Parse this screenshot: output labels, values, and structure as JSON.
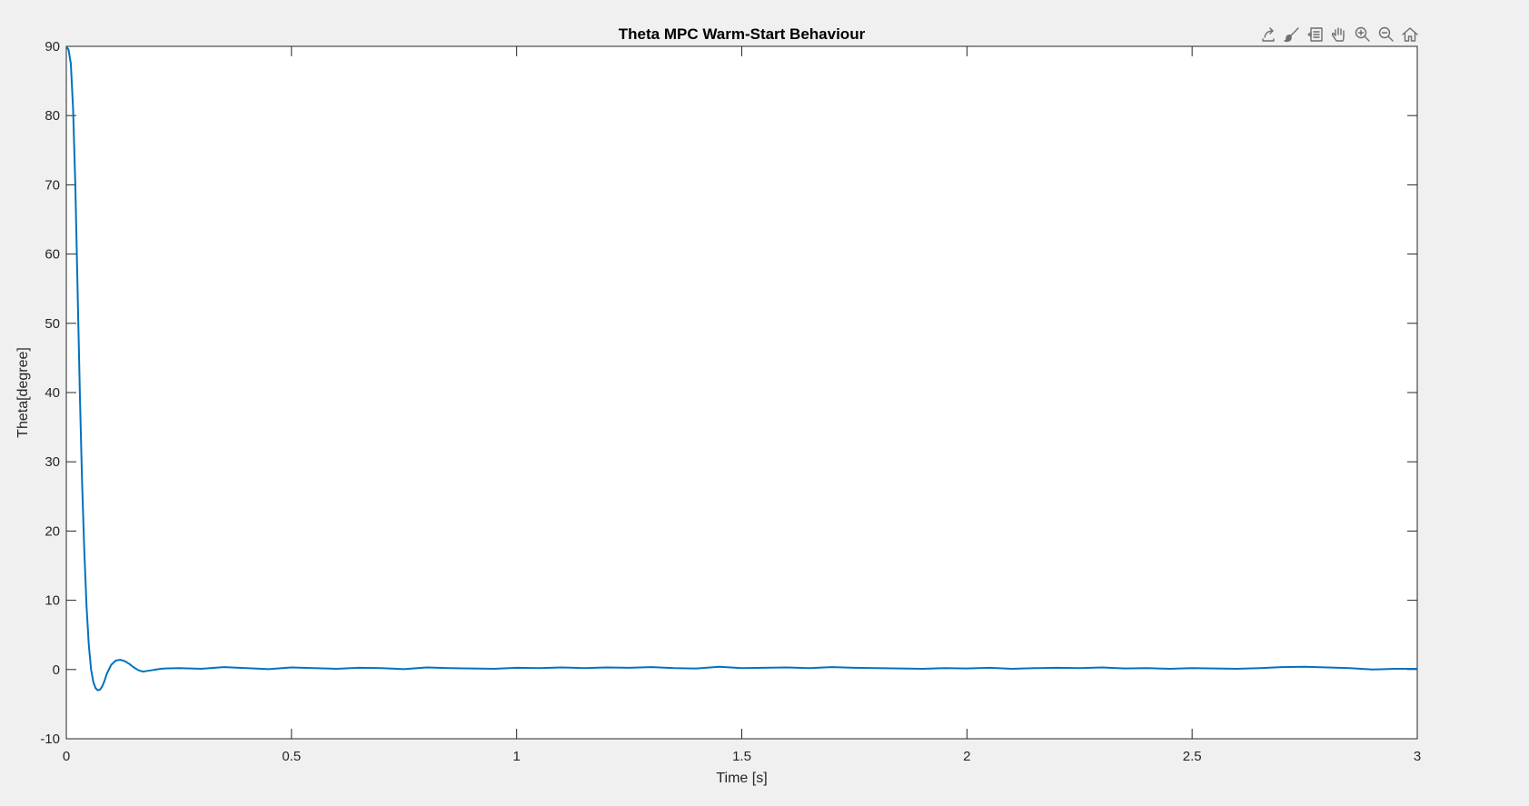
{
  "colors": {
    "figure_bg": "#f0f0f0",
    "axes_bg": "#ffffff",
    "series": "#0072bd",
    "icon": "#6e6e6e"
  },
  "toolbar": {
    "icons": [
      "export-icon",
      "brush-icon",
      "datatip-icon",
      "pan-icon",
      "zoom-in-icon",
      "zoom-out-icon",
      "home-icon"
    ]
  },
  "chart_data": {
    "type": "line",
    "title": "Theta MPC Warm-Start Behaviour",
    "xlabel": "Time [s]",
    "ylabel": "Theta[degree]",
    "xlim": [
      0,
      3
    ],
    "ylim": [
      -10,
      90
    ],
    "grid": false,
    "box": true,
    "xticks": [
      0,
      0.5,
      1,
      1.5,
      2,
      2.5,
      3
    ],
    "xtick_labels": [
      "0",
      "0.5",
      "1",
      "1.5",
      "2",
      "2.5",
      "3"
    ],
    "yticks": [
      -10,
      0,
      10,
      20,
      30,
      40,
      50,
      60,
      70,
      80,
      90
    ],
    "ytick_labels": [
      "-10",
      "0",
      "10",
      "20",
      "30",
      "40",
      "50",
      "60",
      "70",
      "80",
      "90"
    ],
    "series": [
      {
        "color": "#0072bd",
        "x": [
          0,
          0.005,
          0.01,
          0.015,
          0.02,
          0.025,
          0.03,
          0.035,
          0.04,
          0.045,
          0.05,
          0.055,
          0.06,
          0.065,
          0.07,
          0.075,
          0.08,
          0.085,
          0.09,
          0.1,
          0.11,
          0.12,
          0.13,
          0.14,
          0.15,
          0.16,
          0.17,
          0.18,
          0.19,
          0.2,
          0.21,
          0.22,
          0.25,
          0.3,
          0.35,
          0.4,
          0.45,
          0.5,
          0.55,
          0.6,
          0.65,
          0.7,
          0.75,
          0.8,
          0.85,
          0.9,
          0.95,
          1.0,
          1.05,
          1.1,
          1.15,
          1.2,
          1.25,
          1.3,
          1.35,
          1.4,
          1.45,
          1.5,
          1.55,
          1.6,
          1.65,
          1.7,
          1.75,
          1.8,
          1.85,
          1.9,
          1.95,
          2.0,
          2.05,
          2.1,
          2.15,
          2.2,
          2.25,
          2.3,
          2.35,
          2.4,
          2.45,
          2.5,
          2.55,
          2.6,
          2.65,
          2.7,
          2.75,
          2.8,
          2.85,
          2.9,
          2.95,
          3.0
        ],
        "y": [
          90,
          89.5,
          87.5,
          81,
          70,
          55,
          40,
          27,
          17,
          9,
          3.5,
          0,
          -1.8,
          -2.7,
          -3,
          -2.9,
          -2.4,
          -1.6,
          -0.6,
          0.7,
          1.3,
          1.4,
          1.2,
          0.8,
          0.3,
          -0.1,
          -0.3,
          -0.2,
          -0.1,
          0.0,
          0.1,
          0.15,
          0.2,
          0.1,
          0.35,
          0.2,
          0.05,
          0.3,
          0.2,
          0.1,
          0.25,
          0.2,
          0.05,
          0.3,
          0.2,
          0.15,
          0.1,
          0.25,
          0.2,
          0.3,
          0.2,
          0.3,
          0.25,
          0.35,
          0.2,
          0.15,
          0.4,
          0.2,
          0.25,
          0.3,
          0.2,
          0.35,
          0.25,
          0.2,
          0.15,
          0.1,
          0.2,
          0.15,
          0.25,
          0.1,
          0.2,
          0.25,
          0.2,
          0.3,
          0.15,
          0.2,
          0.1,
          0.2,
          0.15,
          0.1,
          0.2,
          0.35,
          0.4,
          0.3,
          0.2,
          0.0,
          0.1,
          0.1
        ]
      }
    ]
  }
}
